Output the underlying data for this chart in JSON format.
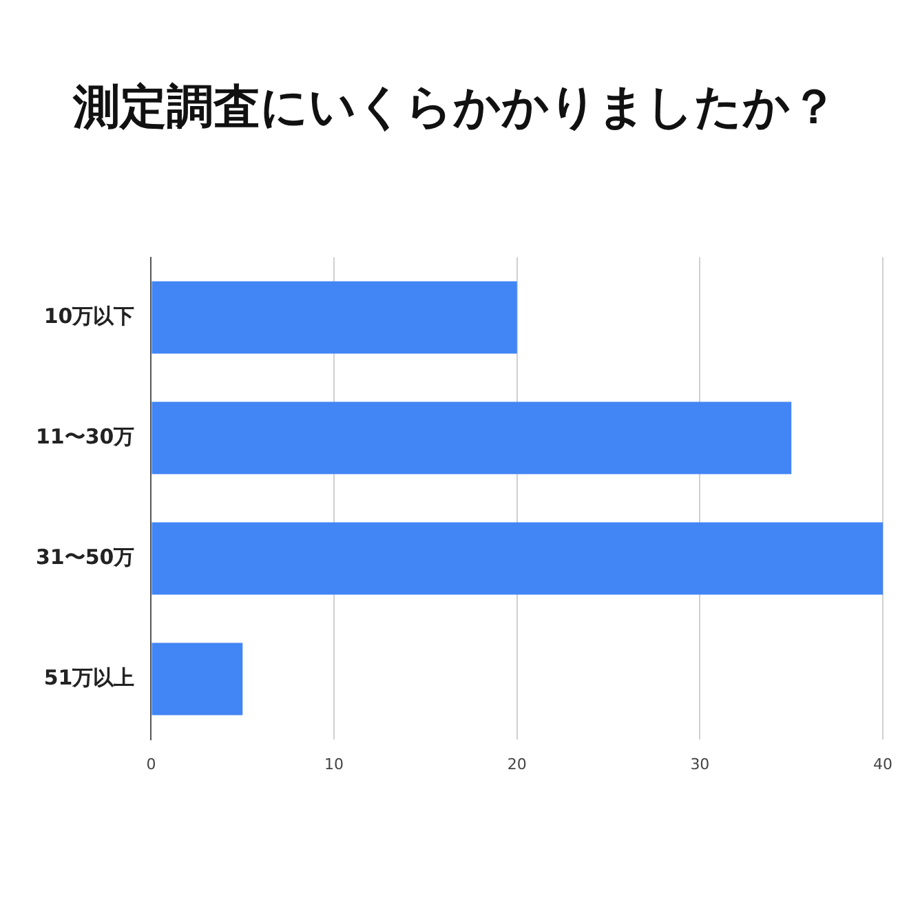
{
  "chart_data": {
    "type": "bar",
    "orientation": "horizontal",
    "title": "測定調査にいくらかかりましたか？",
    "categories": [
      "10万以下",
      "11〜30万",
      "31〜50万",
      "51万以上"
    ],
    "values": [
      20,
      35,
      40,
      5
    ],
    "color": "#4285f4",
    "xlim": [
      0,
      40
    ],
    "xticks": [
      0,
      10,
      20,
      30,
      40
    ],
    "grid": "x"
  }
}
